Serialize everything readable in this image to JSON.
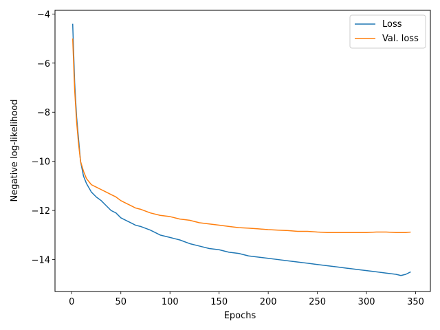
{
  "chart_data": {
    "type": "line",
    "title": "",
    "xlabel": "Epochs",
    "ylabel": "Negative log-likelihood",
    "xlim": [
      -17,
      365
    ],
    "ylim": [
      -15.3,
      -3.85
    ],
    "xticks": [
      0,
      50,
      100,
      150,
      200,
      250,
      300,
      350
    ],
    "yticks": [
      -14,
      -12,
      -10,
      -8,
      -6,
      -4
    ],
    "grid": false,
    "legend": "top-right",
    "series": [
      {
        "name": "Loss",
        "color": "#1f77b4",
        "x": [
          1,
          3,
          5,
          7,
          9,
          12,
          15,
          20,
          25,
          30,
          35,
          40,
          45,
          50,
          55,
          60,
          65,
          70,
          80,
          90,
          100,
          110,
          120,
          130,
          140,
          150,
          160,
          170,
          180,
          190,
          200,
          210,
          220,
          230,
          240,
          250,
          260,
          270,
          280,
          290,
          300,
          310,
          320,
          330,
          335,
          340,
          345
        ],
        "y": [
          -4.4,
          -6.8,
          -8.2,
          -9.1,
          -10.0,
          -10.6,
          -10.9,
          -11.25,
          -11.45,
          -11.6,
          -11.8,
          -12.0,
          -12.1,
          -12.3,
          -12.4,
          -12.5,
          -12.6,
          -12.65,
          -12.8,
          -13.0,
          -13.1,
          -13.2,
          -13.35,
          -13.45,
          -13.55,
          -13.6,
          -13.7,
          -13.75,
          -13.85,
          -13.9,
          -13.95,
          -14.0,
          -14.05,
          -14.1,
          -14.15,
          -14.2,
          -14.25,
          -14.3,
          -14.35,
          -14.4,
          -14.45,
          -14.5,
          -14.55,
          -14.6,
          -14.65,
          -14.6,
          -14.5
        ]
      },
      {
        "name": "Val. loss",
        "color": "#ff7f0e",
        "x": [
          1,
          3,
          5,
          7,
          9,
          12,
          15,
          20,
          25,
          30,
          35,
          40,
          45,
          50,
          55,
          60,
          65,
          70,
          80,
          90,
          100,
          110,
          120,
          130,
          140,
          150,
          160,
          170,
          180,
          190,
          200,
          210,
          220,
          230,
          240,
          250,
          260,
          270,
          280,
          290,
          300,
          310,
          320,
          330,
          335,
          340,
          345
        ],
        "y": [
          -5.0,
          -7.1,
          -8.4,
          -9.3,
          -10.0,
          -10.4,
          -10.7,
          -10.95,
          -11.05,
          -11.15,
          -11.25,
          -11.35,
          -11.45,
          -11.6,
          -11.7,
          -11.8,
          -11.9,
          -11.95,
          -12.1,
          -12.2,
          -12.25,
          -12.35,
          -12.4,
          -12.5,
          -12.55,
          -12.6,
          -12.65,
          -12.7,
          -12.72,
          -12.75,
          -12.78,
          -12.8,
          -12.82,
          -12.85,
          -12.85,
          -12.88,
          -12.9,
          -12.9,
          -12.9,
          -12.9,
          -12.9,
          -12.88,
          -12.88,
          -12.9,
          -12.9,
          -12.9,
          -12.88
        ]
      }
    ]
  }
}
